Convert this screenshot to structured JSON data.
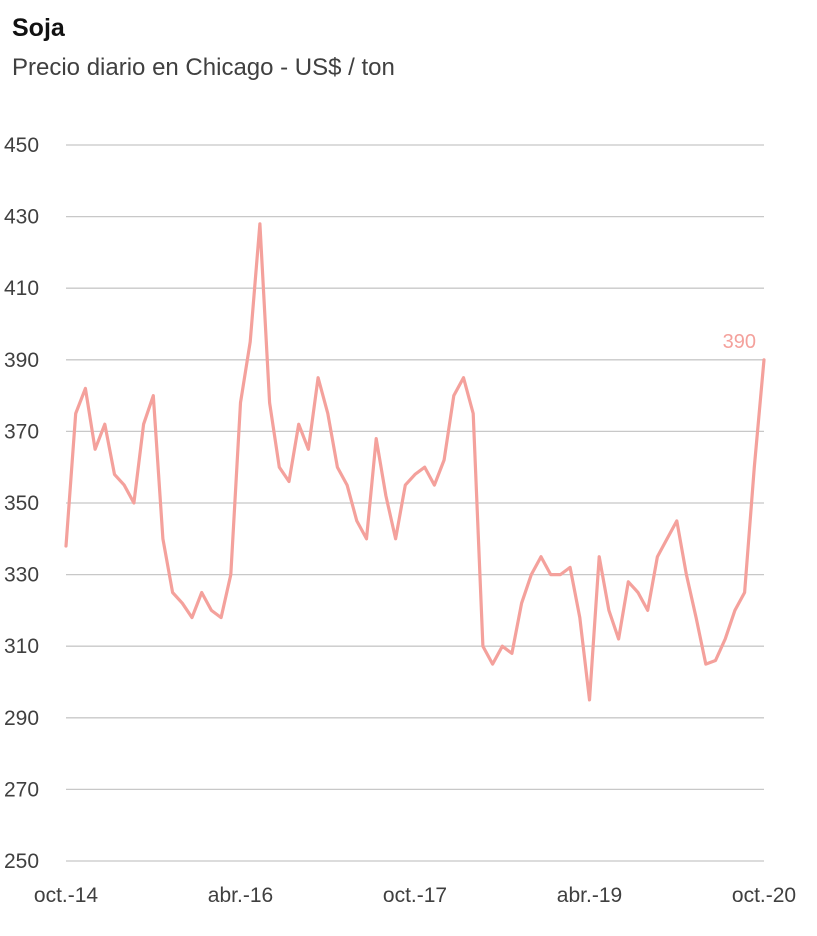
{
  "chart_data": {
    "type": "line",
    "title": "Soja",
    "subtitle": "Precio diario en Chicago - US$ / ton",
    "ylim": [
      250,
      450
    ],
    "yticks": [
      250,
      270,
      290,
      310,
      330,
      350,
      370,
      390,
      410,
      430,
      450
    ],
    "x_tick_labels": [
      "oct.-14",
      "abr.-16",
      "oct.-17",
      "abr.-19",
      "oct.-20"
    ],
    "x_range": [
      "2014-10",
      "2020-10"
    ],
    "grid": true,
    "line_color": "#f4a19c",
    "last_label": "390",
    "series": [
      {
        "x": [
          "2014-10",
          "2014-11",
          "2014-12",
          "2015-01",
          "2015-02",
          "2015-03",
          "2015-04",
          "2015-05",
          "2015-06",
          "2015-07",
          "2015-08",
          "2015-09",
          "2015-10",
          "2015-11",
          "2015-12",
          "2016-01",
          "2016-02",
          "2016-03",
          "2016-04",
          "2016-05",
          "2016-06",
          "2016-07",
          "2016-08",
          "2016-09",
          "2016-10",
          "2016-11",
          "2016-12",
          "2017-01",
          "2017-02",
          "2017-03",
          "2017-04",
          "2017-05",
          "2017-06",
          "2017-07",
          "2017-08",
          "2017-09",
          "2017-10",
          "2017-11",
          "2017-12",
          "2018-01",
          "2018-02",
          "2018-03",
          "2018-04",
          "2018-05",
          "2018-06",
          "2018-07",
          "2018-08",
          "2018-09",
          "2018-10",
          "2018-11",
          "2018-12",
          "2019-01",
          "2019-02",
          "2019-03",
          "2019-04",
          "2019-05",
          "2019-06",
          "2019-07",
          "2019-08",
          "2019-09",
          "2019-10",
          "2019-11",
          "2019-12",
          "2020-01",
          "2020-02",
          "2020-03",
          "2020-04",
          "2020-05",
          "2020-06",
          "2020-07",
          "2020-08",
          "2020-09",
          "2020-10"
        ],
        "values": [
          338,
          375,
          382,
          365,
          372,
          358,
          355,
          350,
          372,
          380,
          340,
          325,
          322,
          318,
          325,
          320,
          318,
          330,
          378,
          395,
          428,
          378,
          360,
          356,
          372,
          365,
          385,
          375,
          360,
          355,
          345,
          340,
          368,
          352,
          340,
          355,
          358,
          360,
          355,
          362,
          380,
          385,
          375,
          310,
          305,
          310,
          308,
          322,
          330,
          335,
          330,
          330,
          332,
          318,
          295,
          335,
          320,
          312,
          328,
          325,
          320,
          335,
          340,
          345,
          330,
          318,
          305,
          306,
          312,
          320,
          325,
          360,
          390
        ]
      }
    ]
  }
}
